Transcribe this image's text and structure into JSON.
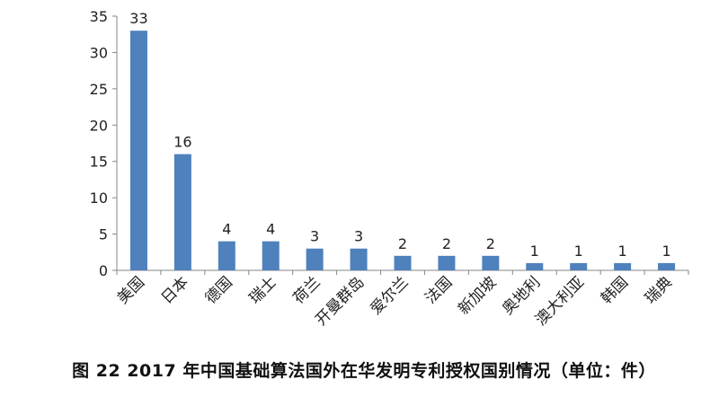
{
  "chart_data": {
    "type": "bar",
    "categories": [
      "美国",
      "日本",
      "德国",
      "瑞士",
      "荷兰",
      "开曼群岛",
      "爱尔兰",
      "法国",
      "新加坡",
      "奥地利",
      "澳大利亚",
      "韩国",
      "瑞典"
    ],
    "values": [
      33,
      16,
      4,
      4,
      3,
      3,
      2,
      2,
      2,
      1,
      1,
      1,
      1
    ],
    "ylim": [
      0,
      35
    ],
    "yticks": [
      0,
      5,
      10,
      15,
      20,
      25,
      30,
      35
    ],
    "title": "",
    "xlabel": "",
    "ylabel": "",
    "grid": false,
    "data_labels": true,
    "bar_color": "#4f81bd"
  },
  "caption": "图 22 2017 年中国基础算法国外在华发明专利授权国别情况（单位：件）"
}
